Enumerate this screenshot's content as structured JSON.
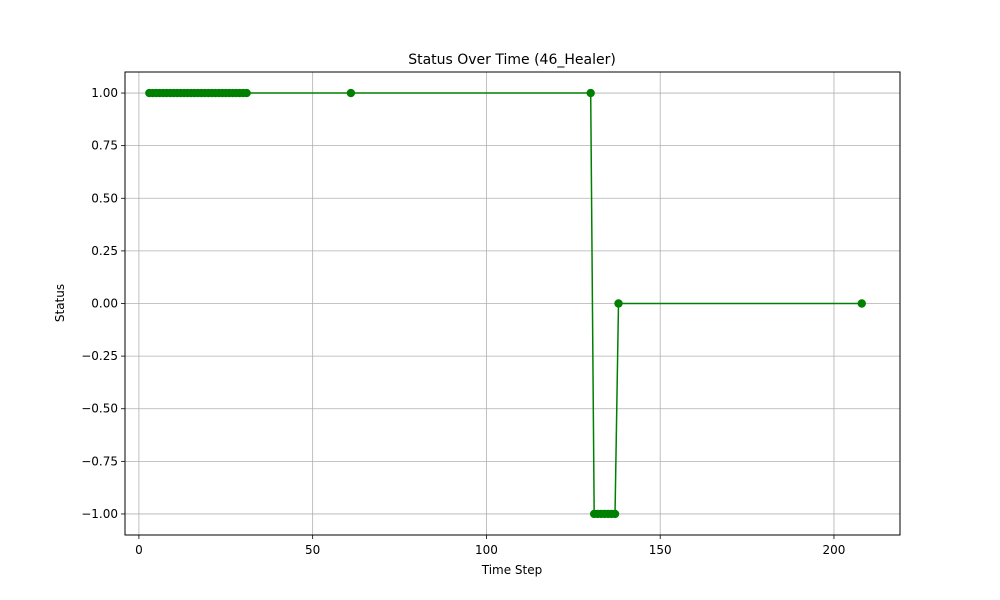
{
  "chart_data": {
    "type": "line",
    "title": "Status Over Time (46_Healer)",
    "xlabel": "Time Step",
    "ylabel": "Status",
    "xlim": [
      -4,
      219
    ],
    "ylim": [
      -1.1,
      1.1
    ],
    "xticks": [
      0,
      50,
      100,
      150,
      200
    ],
    "xtick_labels": [
      "0",
      "50",
      "100",
      "150",
      "200"
    ],
    "yticks": [
      -1.0,
      -0.75,
      -0.5,
      -0.25,
      0.0,
      0.25,
      0.5,
      0.75,
      1.0
    ],
    "ytick_labels": [
      "−1.00",
      "−0.75",
      "−0.50",
      "−0.25",
      "0.00",
      "0.25",
      "0.50",
      "0.75",
      "1.00"
    ],
    "grid": true,
    "line_color": "#008000",
    "marker": "circle",
    "series": [
      {
        "x": [
          3,
          4,
          5,
          6,
          7,
          8,
          9,
          10,
          11,
          12,
          13,
          14,
          15,
          16,
          17,
          18,
          19,
          20,
          21,
          22,
          23,
          24,
          25,
          26,
          27,
          28,
          29,
          30,
          31,
          61,
          130,
          131,
          132,
          133,
          134,
          135,
          136,
          137,
          138,
          208
        ],
        "y": [
          1,
          1,
          1,
          1,
          1,
          1,
          1,
          1,
          1,
          1,
          1,
          1,
          1,
          1,
          1,
          1,
          1,
          1,
          1,
          1,
          1,
          1,
          1,
          1,
          1,
          1,
          1,
          1,
          1,
          1,
          1,
          -1,
          -1,
          -1,
          -1,
          -1,
          -1,
          -1,
          0,
          0
        ]
      }
    ]
  }
}
